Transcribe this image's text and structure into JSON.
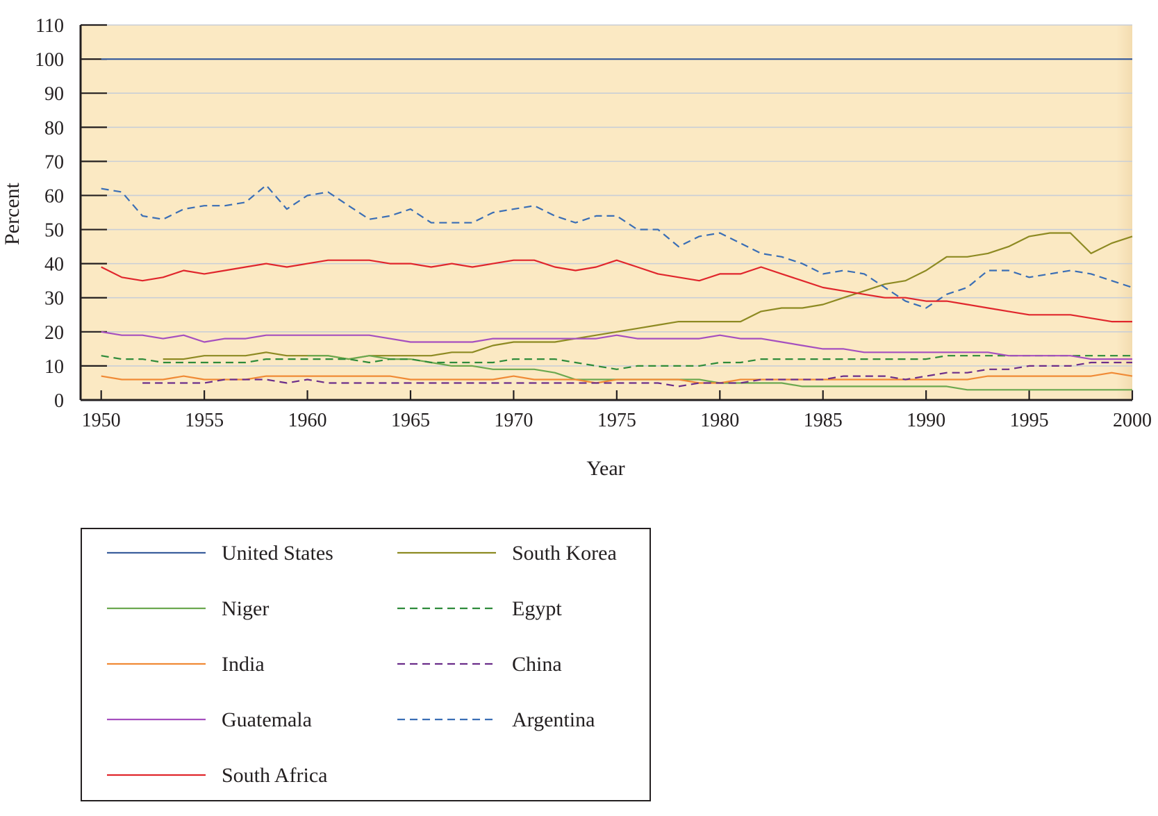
{
  "chart_data": {
    "type": "line",
    "title": "",
    "xlabel": "Year",
    "ylabel": "Percent",
    "xlim": [
      1949,
      2000
    ],
    "ylim": [
      0,
      110
    ],
    "x_ticks": [
      1950,
      1955,
      1960,
      1965,
      1970,
      1975,
      1980,
      1985,
      1990,
      1995,
      2000
    ],
    "y_ticks": [
      0,
      10,
      20,
      30,
      40,
      50,
      60,
      70,
      80,
      90,
      100,
      110
    ],
    "grid": true,
    "legend_position": "bottom-left",
    "background_color": "#fbe9c3",
    "series": [
      {
        "name": "United States",
        "color": "#3b5e9c",
        "dash": "solid",
        "x": [
          1950,
          1955,
          1960,
          1965,
          1970,
          1975,
          1980,
          1985,
          1990,
          1995,
          2000
        ],
        "values": [
          100,
          100,
          100,
          100,
          100,
          100,
          100,
          100,
          100,
          100,
          100
        ]
      },
      {
        "name": "South Korea",
        "color": "#8d8a22",
        "dash": "solid",
        "x": [
          1953,
          1954,
          1955,
          1956,
          1957,
          1958,
          1959,
          1960,
          1961,
          1962,
          1963,
          1964,
          1965,
          1966,
          1967,
          1968,
          1969,
          1970,
          1971,
          1972,
          1973,
          1974,
          1975,
          1976,
          1977,
          1978,
          1979,
          1980,
          1981,
          1982,
          1983,
          1984,
          1985,
          1986,
          1987,
          1988,
          1989,
          1990,
          1991,
          1992,
          1993,
          1994,
          1995,
          1996,
          1997,
          1998,
          1999,
          2000
        ],
        "values": [
          12,
          12,
          13,
          13,
          13,
          14,
          13,
          13,
          13,
          12,
          13,
          13,
          13,
          13,
          14,
          14,
          16,
          17,
          17,
          17,
          18,
          19,
          20,
          21,
          22,
          23,
          23,
          23,
          23,
          26,
          27,
          27,
          28,
          30,
          32,
          34,
          35,
          38,
          42,
          42,
          43,
          45,
          48,
          49,
          49,
          43,
          46,
          48
        ]
      },
      {
        "name": "Niger",
        "color": "#6ba84f",
        "dash": "solid",
        "x": [
          1960,
          1961,
          1962,
          1963,
          1964,
          1965,
          1966,
          1967,
          1968,
          1969,
          1970,
          1971,
          1972,
          1973,
          1974,
          1975,
          1976,
          1977,
          1978,
          1979,
          1980,
          1981,
          1982,
          1983,
          1984,
          1985,
          1986,
          1987,
          1988,
          1989,
          1990,
          1991,
          1992,
          1993,
          1994,
          1995,
          1996,
          1997,
          1998,
          1999,
          2000
        ],
        "values": [
          13,
          13,
          12,
          13,
          12,
          12,
          11,
          10,
          10,
          9,
          9,
          9,
          8,
          6,
          6,
          6,
          6,
          6,
          6,
          6,
          5,
          5,
          5,
          5,
          4,
          4,
          4,
          4,
          4,
          4,
          4,
          4,
          3,
          3,
          3,
          3,
          3,
          3,
          3,
          3,
          3
        ]
      },
      {
        "name": "Egypt",
        "color": "#2e8b3a",
        "dash": "dashed",
        "x": [
          1950,
          1951,
          1952,
          1953,
          1954,
          1955,
          1956,
          1957,
          1958,
          1959,
          1960,
          1961,
          1962,
          1963,
          1964,
          1965,
          1966,
          1967,
          1968,
          1969,
          1970,
          1971,
          1972,
          1973,
          1974,
          1975,
          1976,
          1977,
          1978,
          1979,
          1980,
          1981,
          1982,
          1983,
          1984,
          1985,
          1986,
          1987,
          1988,
          1989,
          1990,
          1991,
          1992,
          1993,
          1994,
          1995,
          1996,
          1997,
          1998,
          1999,
          2000
        ],
        "values": [
          13,
          12,
          12,
          11,
          11,
          11,
          11,
          11,
          12,
          12,
          12,
          12,
          12,
          11,
          12,
          12,
          11,
          11,
          11,
          11,
          12,
          12,
          12,
          11,
          10,
          9,
          10,
          10,
          10,
          10,
          11,
          11,
          12,
          12,
          12,
          12,
          12,
          12,
          12,
          12,
          12,
          13,
          13,
          13,
          13,
          13,
          13,
          13,
          13,
          13,
          13
        ]
      },
      {
        "name": "India",
        "color": "#f08a35",
        "dash": "solid",
        "x": [
          1950,
          1951,
          1952,
          1953,
          1954,
          1955,
          1956,
          1957,
          1958,
          1959,
          1960,
          1961,
          1962,
          1963,
          1964,
          1965,
          1966,
          1967,
          1968,
          1969,
          1970,
          1971,
          1972,
          1973,
          1974,
          1975,
          1976,
          1977,
          1978,
          1979,
          1980,
          1981,
          1982,
          1983,
          1984,
          1985,
          1986,
          1987,
          1988,
          1989,
          1990,
          1991,
          1992,
          1993,
          1994,
          1995,
          1996,
          1997,
          1998,
          1999,
          2000
        ],
        "values": [
          7,
          6,
          6,
          6,
          7,
          6,
          6,
          6,
          7,
          7,
          7,
          7,
          7,
          7,
          7,
          6,
          6,
          6,
          6,
          6,
          7,
          6,
          6,
          6,
          5,
          6,
          6,
          6,
          6,
          5,
          5,
          6,
          6,
          6,
          6,
          6,
          6,
          6,
          6,
          6,
          6,
          6,
          6,
          7,
          7,
          7,
          7,
          7,
          7,
          8,
          7
        ]
      },
      {
        "name": "China",
        "color": "#6b2d8a",
        "dash": "dashed",
        "x": [
          1952,
          1953,
          1954,
          1955,
          1956,
          1957,
          1958,
          1959,
          1960,
          1961,
          1962,
          1963,
          1964,
          1965,
          1966,
          1967,
          1968,
          1969,
          1970,
          1971,
          1972,
          1973,
          1974,
          1975,
          1976,
          1977,
          1978,
          1979,
          1980,
          1981,
          1982,
          1983,
          1984,
          1985,
          1986,
          1987,
          1988,
          1989,
          1990,
          1991,
          1992,
          1993,
          1994,
          1995,
          1996,
          1997,
          1998,
          1999,
          2000
        ],
        "values": [
          5,
          5,
          5,
          5,
          6,
          6,
          6,
          5,
          6,
          5,
          5,
          5,
          5,
          5,
          5,
          5,
          5,
          5,
          5,
          5,
          5,
          5,
          5,
          5,
          5,
          5,
          4,
          5,
          5,
          5,
          6,
          6,
          6,
          6,
          7,
          7,
          7,
          6,
          7,
          8,
          8,
          9,
          9,
          10,
          10,
          10,
          11,
          11,
          11
        ]
      },
      {
        "name": "Guatemala",
        "color": "#a54fbf",
        "dash": "solid",
        "x": [
          1950,
          1951,
          1952,
          1953,
          1954,
          1955,
          1956,
          1957,
          1958,
          1959,
          1960,
          1961,
          1962,
          1963,
          1964,
          1965,
          1966,
          1967,
          1968,
          1969,
          1970,
          1971,
          1972,
          1973,
          1974,
          1975,
          1976,
          1977,
          1978,
          1979,
          1980,
          1981,
          1982,
          1983,
          1984,
          1985,
          1986,
          1987,
          1988,
          1989,
          1990,
          1991,
          1992,
          1993,
          1994,
          1995,
          1996,
          1997,
          1998,
          1999,
          2000
        ],
        "values": [
          20,
          19,
          19,
          18,
          19,
          17,
          18,
          18,
          19,
          19,
          19,
          19,
          19,
          19,
          18,
          17,
          17,
          17,
          17,
          18,
          18,
          18,
          18,
          18,
          18,
          19,
          18,
          18,
          18,
          18,
          19,
          18,
          18,
          17,
          16,
          15,
          15,
          14,
          14,
          14,
          14,
          14,
          14,
          14,
          13,
          13,
          13,
          13,
          12,
          12,
          12
        ]
      },
      {
        "name": "Argentina",
        "color": "#3a6eb5",
        "dash": "dashed",
        "x": [
          1950,
          1951,
          1952,
          1953,
          1954,
          1955,
          1956,
          1957,
          1958,
          1959,
          1960,
          1961,
          1962,
          1963,
          1964,
          1965,
          1966,
          1967,
          1968,
          1969,
          1970,
          1971,
          1972,
          1973,
          1974,
          1975,
          1976,
          1977,
          1978,
          1979,
          1980,
          1981,
          1982,
          1983,
          1984,
          1985,
          1986,
          1987,
          1988,
          1989,
          1990,
          1991,
          1992,
          1993,
          1994,
          1995,
          1996,
          1997,
          1998,
          1999,
          2000
        ],
        "values": [
          62,
          61,
          54,
          53,
          56,
          57,
          57,
          58,
          63,
          56,
          60,
          61,
          57,
          53,
          54,
          56,
          52,
          52,
          52,
          55,
          56,
          57,
          54,
          52,
          54,
          54,
          50,
          50,
          45,
          48,
          49,
          46,
          43,
          42,
          40,
          37,
          38,
          37,
          33,
          29,
          27,
          31,
          33,
          38,
          38,
          36,
          37,
          38,
          37,
          35,
          33
        ]
      },
      {
        "name": "South Africa",
        "color": "#e0262c",
        "dash": "solid",
        "x": [
          1950,
          1951,
          1952,
          1953,
          1954,
          1955,
          1956,
          1957,
          1958,
          1959,
          1960,
          1961,
          1962,
          1963,
          1964,
          1965,
          1966,
          1967,
          1968,
          1969,
          1970,
          1971,
          1972,
          1973,
          1974,
          1975,
          1976,
          1977,
          1978,
          1979,
          1980,
          1981,
          1982,
          1983,
          1984,
          1985,
          1986,
          1987,
          1988,
          1989,
          1990,
          1991,
          1992,
          1993,
          1994,
          1995,
          1996,
          1997,
          1998,
          1999,
          2000
        ],
        "values": [
          39,
          36,
          35,
          36,
          38,
          37,
          38,
          39,
          40,
          39,
          40,
          41,
          41,
          41,
          40,
          40,
          39,
          40,
          39,
          40,
          41,
          41,
          39,
          38,
          39,
          41,
          39,
          37,
          36,
          35,
          37,
          37,
          39,
          37,
          35,
          33,
          32,
          31,
          30,
          30,
          29,
          29,
          28,
          27,
          26,
          25,
          25,
          25,
          24,
          23,
          23
        ]
      }
    ],
    "legend_order": [
      "United States",
      "South Korea",
      "Niger",
      "Egypt",
      "India",
      "China",
      "Guatemala",
      "Argentina",
      "South Africa"
    ]
  }
}
